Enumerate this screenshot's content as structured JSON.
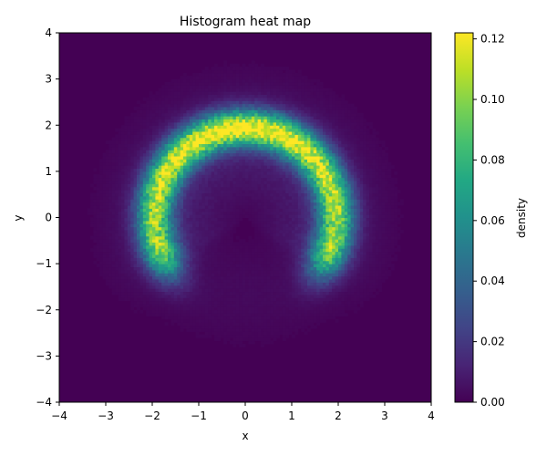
{
  "chart_data": {
    "type": "heatmap",
    "title": "Histogram heat map",
    "xlabel": "x",
    "ylabel": "y",
    "xlim": [
      -4,
      4
    ],
    "ylim": [
      -4,
      4
    ],
    "bins": 120,
    "distribution": "density concentrated on an arc of radius ~2 centered at the origin, upper half (about -20 deg to 200 deg), peak near (0, 2)",
    "xticks": [
      -4,
      -3,
      -2,
      -1,
      0,
      1,
      2,
      3,
      4
    ],
    "yticks": [
      -4,
      -3,
      -2,
      -1,
      0,
      1,
      2,
      3,
      4
    ],
    "colorbar": {
      "label": "density",
      "range": [
        0,
        0.122
      ],
      "ticks": [
        0.0,
        0.02,
        0.04,
        0.06,
        0.08,
        0.1,
        0.12
      ],
      "tick_labels": [
        "0.00",
        "0.02",
        "0.04",
        "0.06",
        "0.08",
        "0.10",
        "0.12"
      ],
      "colormap": "viridis"
    },
    "grid": false
  }
}
